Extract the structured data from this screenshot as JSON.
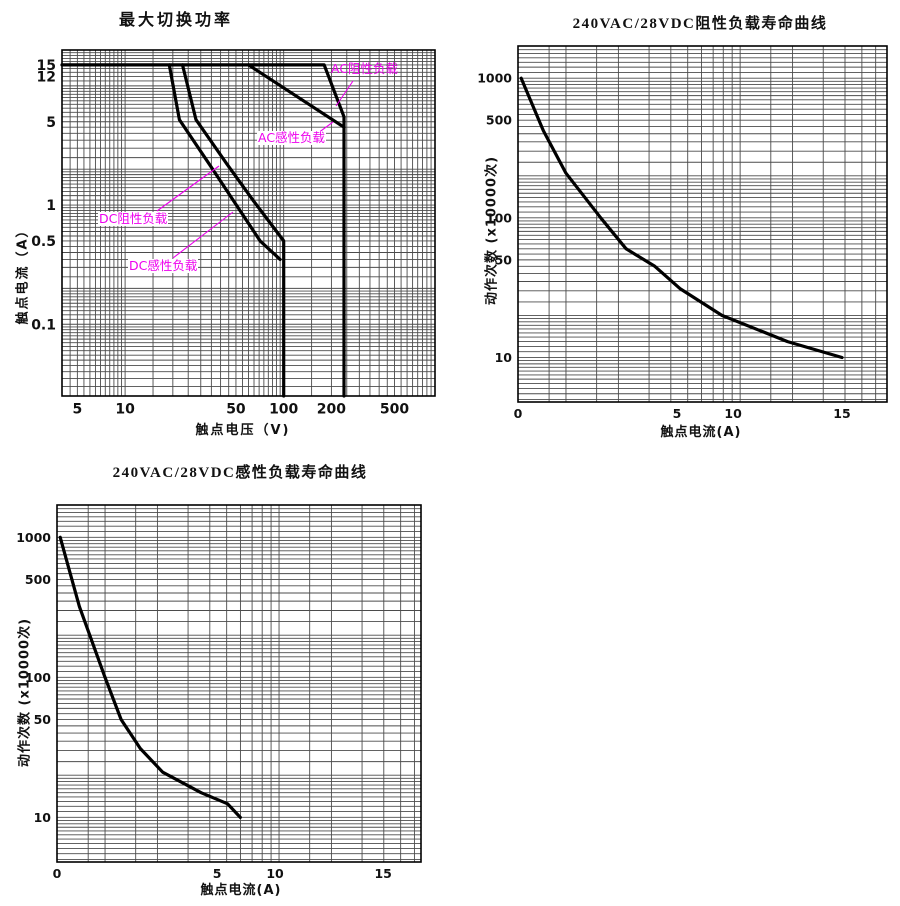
{
  "colors": {
    "curve": "#000000",
    "grid": "#4b4b4b",
    "border": "#000000",
    "annotation": "#ee00ee",
    "background": "#ffffff"
  },
  "chart_data": [
    {
      "id": "max-switching-power",
      "type": "line",
      "title": "最大切换功率",
      "xlabel": "触点电压（V)",
      "ylabel": "触点电流（A）",
      "x_scale": "log",
      "y_scale": "log",
      "x_range": [
        4,
        900
      ],
      "y_range": [
        0.025,
        20
      ],
      "grid": "log-log graph paper",
      "x_ticks": [
        {
          "v": 5,
          "label": "5"
        },
        {
          "v": 10,
          "label": "10"
        },
        {
          "v": 50,
          "label": "50"
        },
        {
          "v": 100,
          "label": "100"
        },
        {
          "v": 200,
          "label": "200"
        },
        {
          "v": 500,
          "label": "500"
        }
      ],
      "y_ticks": [
        {
          "v": 15,
          "label": "15"
        },
        {
          "v": 12,
          "label": "12"
        },
        {
          "v": 5,
          "label": "5"
        },
        {
          "v": 1,
          "label": "1"
        },
        {
          "v": 0.5,
          "label": "0.5"
        },
        {
          "v": 0.1,
          "label": "0.1"
        }
      ],
      "series": [
        {
          "name": "AC阻性负载",
          "points": [
            [
              4,
              15
            ],
            [
              180,
              15
            ],
            [
              240,
              5.5
            ],
            [
              240,
              0.025
            ]
          ]
        },
        {
          "name": "AC感性负载",
          "points": [
            [
              60,
              15
            ],
            [
              240,
              4.5
            ]
          ]
        },
        {
          "name": "DC阻性负载",
          "points": [
            [
              23,
              15
            ],
            [
              28,
              5.2
            ],
            [
              44,
              2.2
            ],
            [
              64,
              1.1
            ],
            [
              100,
              0.5
            ],
            [
              100,
              0.025
            ]
          ]
        },
        {
          "name": "DC感性负载",
          "points": [
            [
              19,
              15
            ],
            [
              22,
              5.2
            ],
            [
              34,
              2.2
            ],
            [
              48,
              1.1
            ],
            [
              71,
              0.5
            ],
            [
              95,
              0.35
            ]
          ]
        }
      ],
      "annotations": [
        {
          "text": "AC阻性负载",
          "x": 330,
          "y": 62,
          "bg": false,
          "leader": [
            353,
            81,
            336,
            106
          ]
        },
        {
          "text": "AC感性负载",
          "x": 257,
          "y": 131,
          "bg": true,
          "leader": [
            314,
            136,
            333,
            122
          ]
        },
        {
          "text": "DC阻性负载",
          "x": 98,
          "y": 212,
          "bg": true,
          "leader": [
            157,
            211,
            219,
            166
          ]
        },
        {
          "text": "DC感性负载",
          "x": 128,
          "y": 259,
          "bg": true,
          "leader": [
            173,
            258,
            233,
            212
          ]
        }
      ],
      "layout": {
        "region": [
          0,
          0,
          450,
          450
        ],
        "plot": [
          62,
          50,
          435,
          396
        ],
        "tick_size": 14
      }
    },
    {
      "id": "resistive-load-life",
      "type": "line",
      "title": "240VAC/28VDC阻性负载寿命曲线",
      "xlabel": "触点电流(A)",
      "ylabel": "动作次数 (x10000次)",
      "x_scale": "piecewise",
      "y_scale": "log",
      "y_range": [
        4.8,
        1700
      ],
      "x_ticks": [
        {
          "v": 0,
          "fr": 0.0,
          "label": "0"
        },
        {
          "v": 5,
          "fr": 0.431,
          "label": "5"
        },
        {
          "v": 10,
          "fr": 0.583,
          "label": "10"
        },
        {
          "v": 15,
          "fr": 0.878,
          "label": "15"
        }
      ],
      "y_ticks": [
        {
          "v": 1000,
          "label": "1000"
        },
        {
          "v": 500,
          "label": "500"
        },
        {
          "v": 100,
          "label": "100"
        },
        {
          "v": 50,
          "label": "50"
        },
        {
          "v": 10,
          "label": "10"
        }
      ],
      "x_grid": {
        "unit_fr": 0.13,
        "decade_fr": 0.472,
        "values": [
          0.8,
          1,
          1.5,
          2,
          3,
          4,
          5,
          6,
          7,
          8,
          9,
          10,
          15,
          20,
          30,
          40,
          50,
          60,
          70
        ]
      },
      "series": [
        {
          "name": "阻性负载寿命",
          "points": [
            [
              0.1,
              1000
            ],
            [
              0.8,
              420
            ],
            [
              1.5,
              210
            ],
            [
              2.6,
              100
            ],
            [
              3.4,
              60
            ],
            [
              4.3,
              45
            ],
            [
              5.3,
              31
            ],
            [
              9,
              20
            ],
            [
              12.5,
              13
            ],
            [
              15,
              10
            ]
          ]
        }
      ],
      "annotations": [],
      "layout": {
        "region": [
          450,
          0,
          450,
          450
        ],
        "plot": [
          68,
          46,
          437,
          402
        ],
        "tick_size": 12.5
      }
    },
    {
      "id": "inductive-load-life",
      "type": "line",
      "title": "240VAC/28VDC感性负载寿命曲线",
      "xlabel": "触点电流(A)",
      "ylabel": "动作次数 (x10000次)",
      "x_scale": "piecewise",
      "y_scale": "log",
      "y_range": [
        4.8,
        1700
      ],
      "x_ticks": [
        {
          "v": 0,
          "fr": 0.0,
          "label": "0"
        },
        {
          "v": 5,
          "fr": 0.44,
          "label": "5"
        },
        {
          "v": 10,
          "fr": 0.599,
          "label": "10"
        },
        {
          "v": 15,
          "fr": 0.896,
          "label": "15"
        }
      ],
      "y_ticks": [
        {
          "v": 1000,
          "label": "1000"
        },
        {
          "v": 500,
          "label": "500"
        },
        {
          "v": 100,
          "label": "100"
        },
        {
          "v": 50,
          "label": "50"
        },
        {
          "v": 10,
          "label": "10"
        }
      ],
      "x_grid": {
        "unit_fr": 0.132,
        "decade_fr": 0.478,
        "values": [
          0.8,
          1,
          1.5,
          2,
          3,
          4,
          5,
          6,
          7,
          8,
          9,
          10,
          15,
          20,
          30,
          40,
          50,
          60,
          70
        ]
      },
      "series": [
        {
          "name": "感性负载寿命",
          "points": [
            [
              0.1,
              1000
            ],
            [
              0.7,
              320
            ],
            [
              1.5,
              100
            ],
            [
              2.0,
              50
            ],
            [
              2.6,
              31
            ],
            [
              3.3,
              21
            ],
            [
              4.5,
              15
            ],
            [
              5.9,
              12.5
            ],
            [
              7,
              10
            ]
          ]
        }
      ],
      "annotations": [],
      "layout": {
        "region": [
          0,
          455,
          460,
          451
        ],
        "plot": [
          57,
          50,
          421,
          407
        ],
        "tick_size": 12.5
      }
    }
  ]
}
